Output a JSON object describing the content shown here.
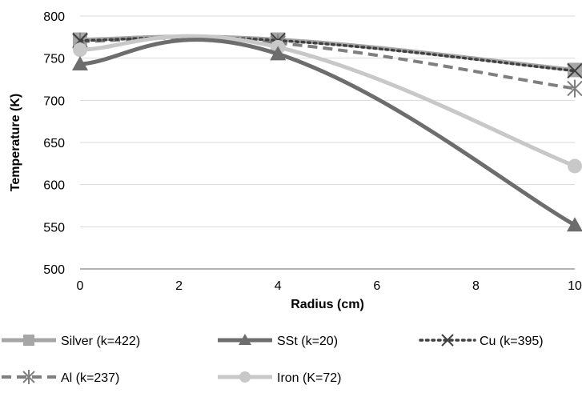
{
  "chart_data": {
    "type": "line",
    "title": "",
    "xlabel": "Radius (cm)",
    "ylabel": "Temperature (K)",
    "xlim": [
      0,
      10
    ],
    "ylim": [
      500,
      800
    ],
    "x_ticks": [
      "0",
      "2",
      "4",
      "6",
      "8",
      "10"
    ],
    "y_ticks": [
      "500",
      "550",
      "600",
      "650",
      "700",
      "750",
      "800"
    ],
    "grid": "horizontal",
    "legend_position": "bottom",
    "x": [
      0,
      4,
      10
    ],
    "series": [
      {
        "name": "Silver (k=422)",
        "values": [
          772,
          772,
          736
        ],
        "color": "#a6a6a6",
        "marker": "square",
        "dash": "solid"
      },
      {
        "name": "SSt (k=20)",
        "values": [
          743,
          755,
          552
        ],
        "color": "#6d6d6d",
        "marker": "triangle",
        "dash": "solid"
      },
      {
        "name": "Cu (k=395)",
        "values": [
          771,
          771,
          735
        ],
        "color": "#404040",
        "marker": "x",
        "dash": "dotted"
      },
      {
        "name": "Al (k=237)",
        "values": [
          770,
          768,
          714
        ],
        "color": "#7f7f7f",
        "marker": "asterisk",
        "dash": "dashed"
      },
      {
        "name": "Iron (K=72)",
        "values": [
          760,
          763,
          622
        ],
        "color": "#c8c8c8",
        "marker": "circle",
        "dash": "solid"
      }
    ]
  }
}
